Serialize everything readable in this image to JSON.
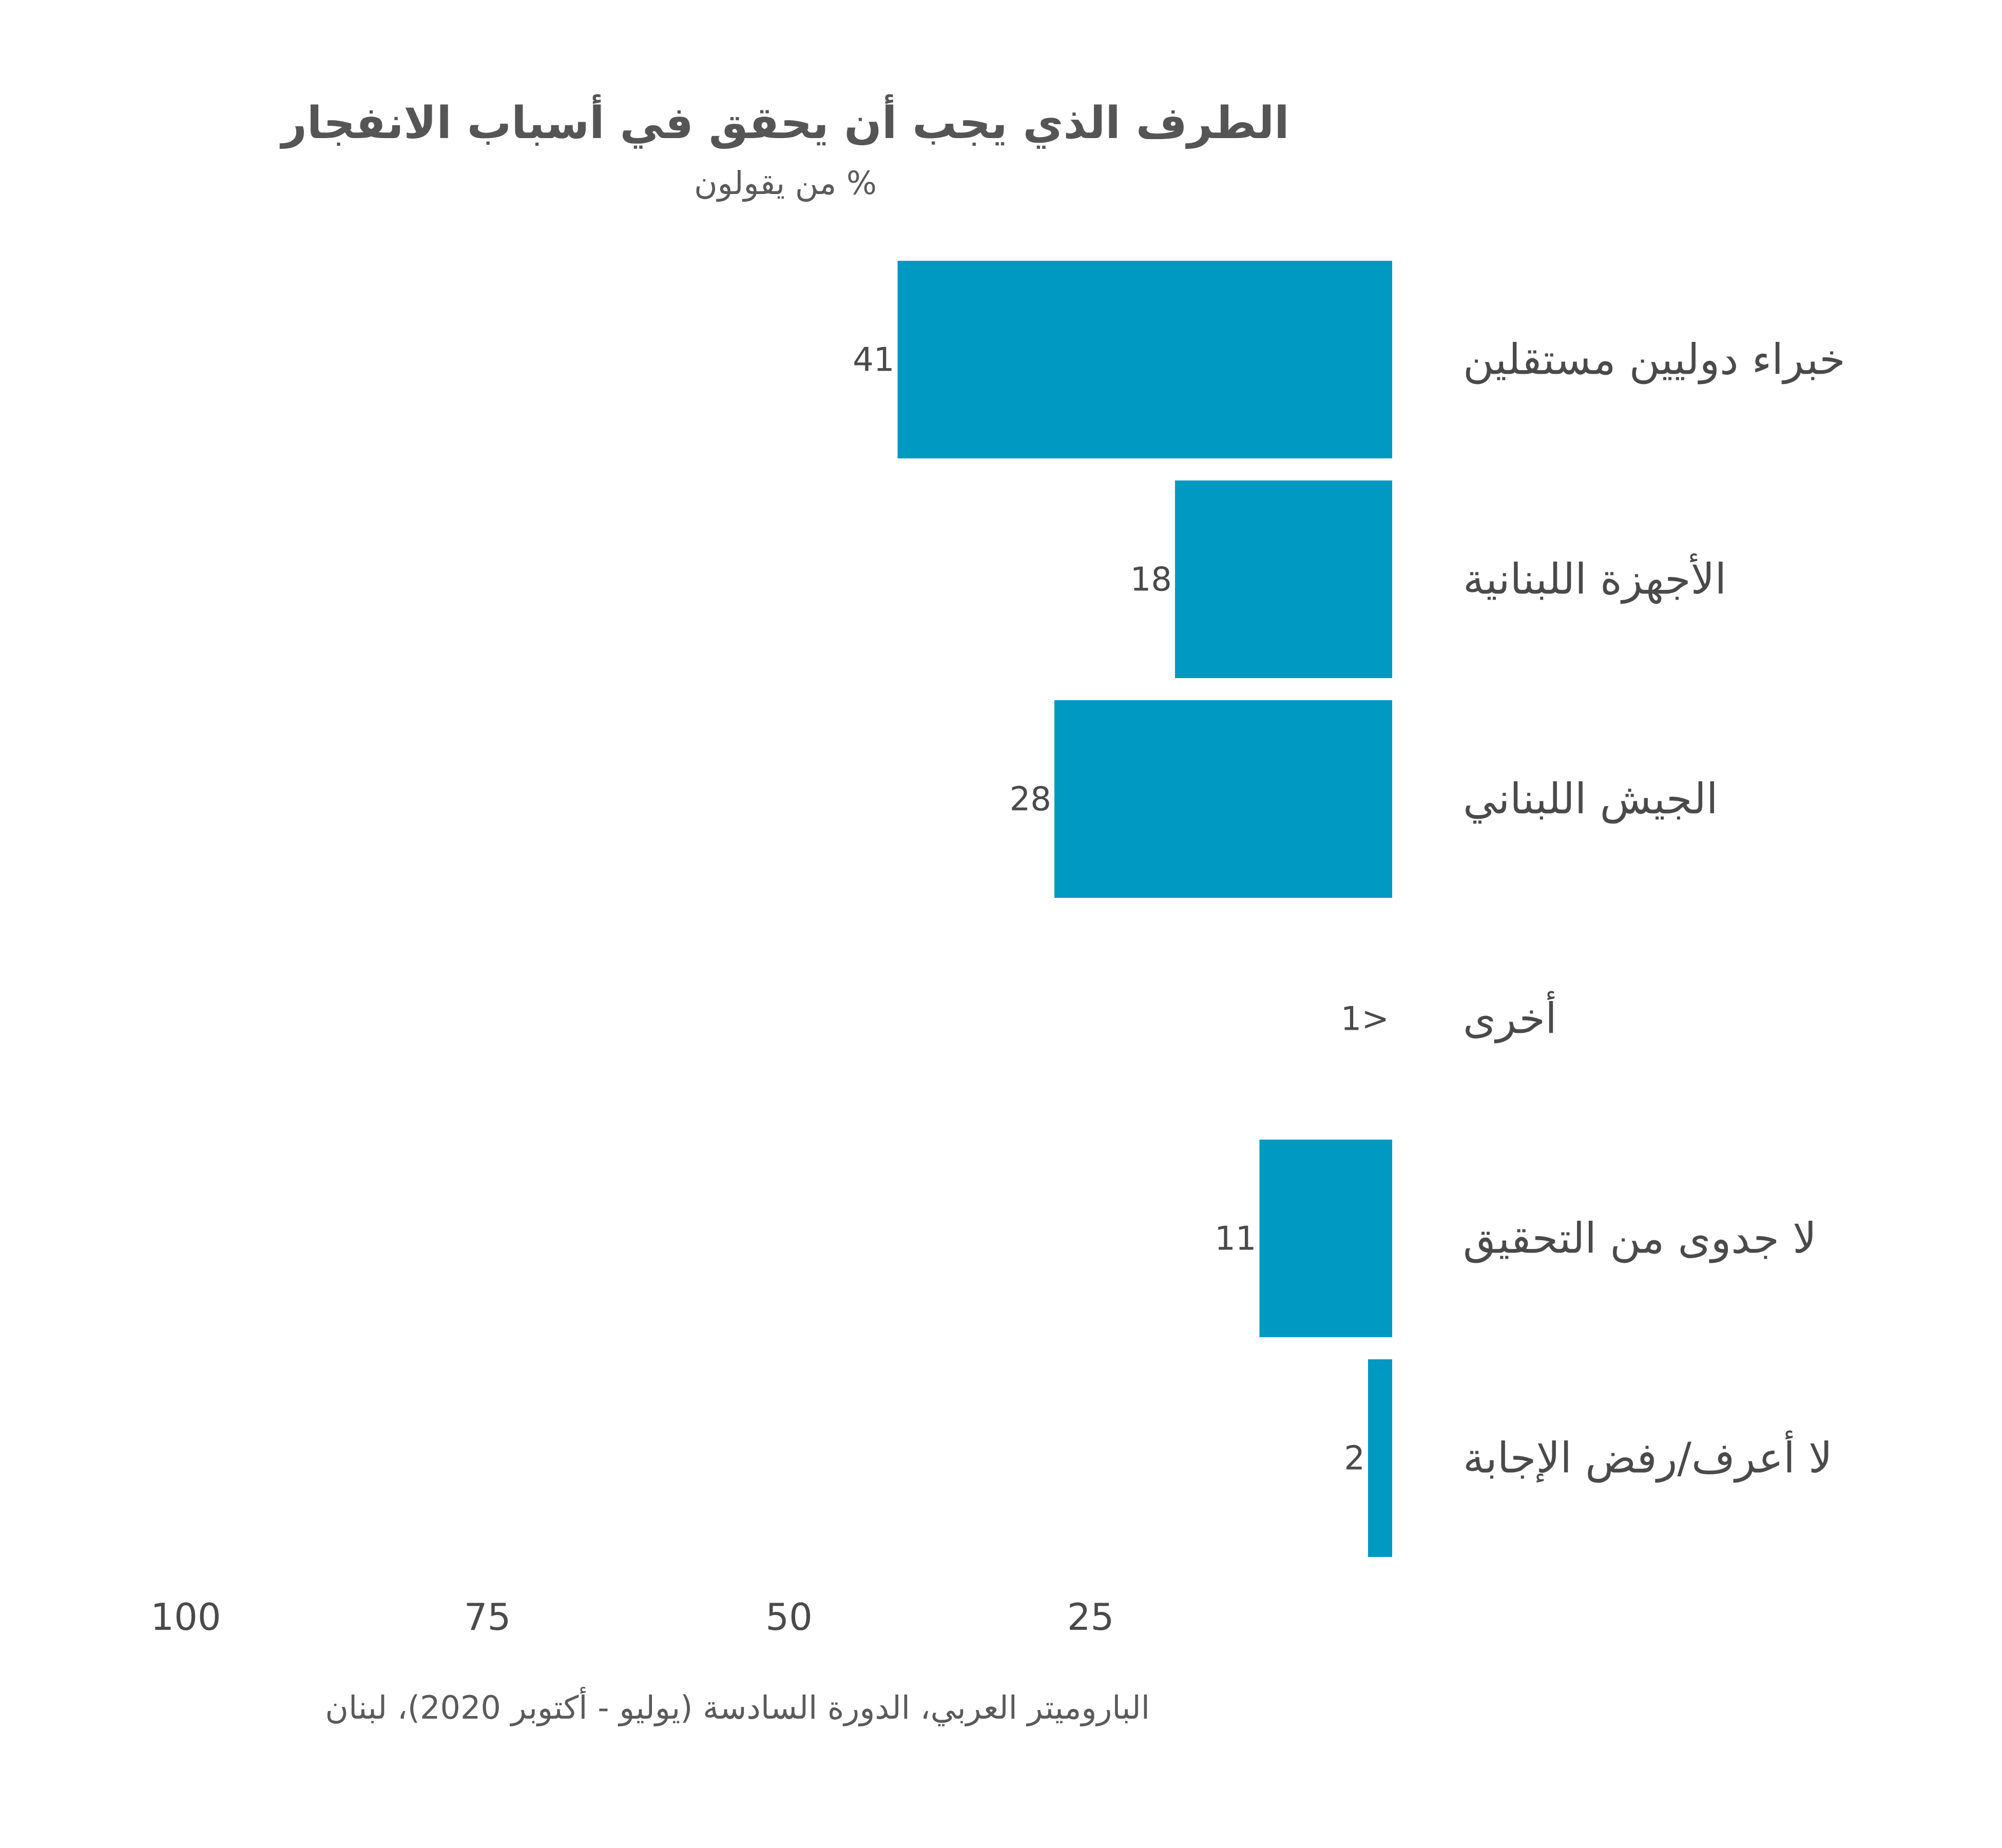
{
  "title": "الطرف الذي يجب أن يحقق في أسباب الانفجار",
  "subtitle": "% من يقولون",
  "source": "الباروميتر العربي، الدورة السادسة (يوليو - أكتوبر 2020)، لبنان",
  "colors": {
    "bar": "#0099c2",
    "text": "#4a4a4a"
  },
  "chart_data": {
    "type": "bar",
    "orientation": "horizontal",
    "direction": "right-to-left",
    "categories": [
      "خبراء دوليين مستقلين",
      "الأجهزة اللبنانية",
      "الجيش اللبناني",
      "أخرى",
      "لا جدوى من التحقيق",
      "لا أعرف/رفض الإجابة"
    ],
    "values": [
      41,
      18,
      28,
      0.5,
      11,
      2
    ],
    "value_labels": [
      "41",
      "18",
      "28",
      "1>",
      "11",
      "2"
    ],
    "xlim": [
      0,
      100
    ],
    "xticks": [
      100,
      75,
      50,
      25
    ],
    "grid": false,
    "legend": "none"
  }
}
